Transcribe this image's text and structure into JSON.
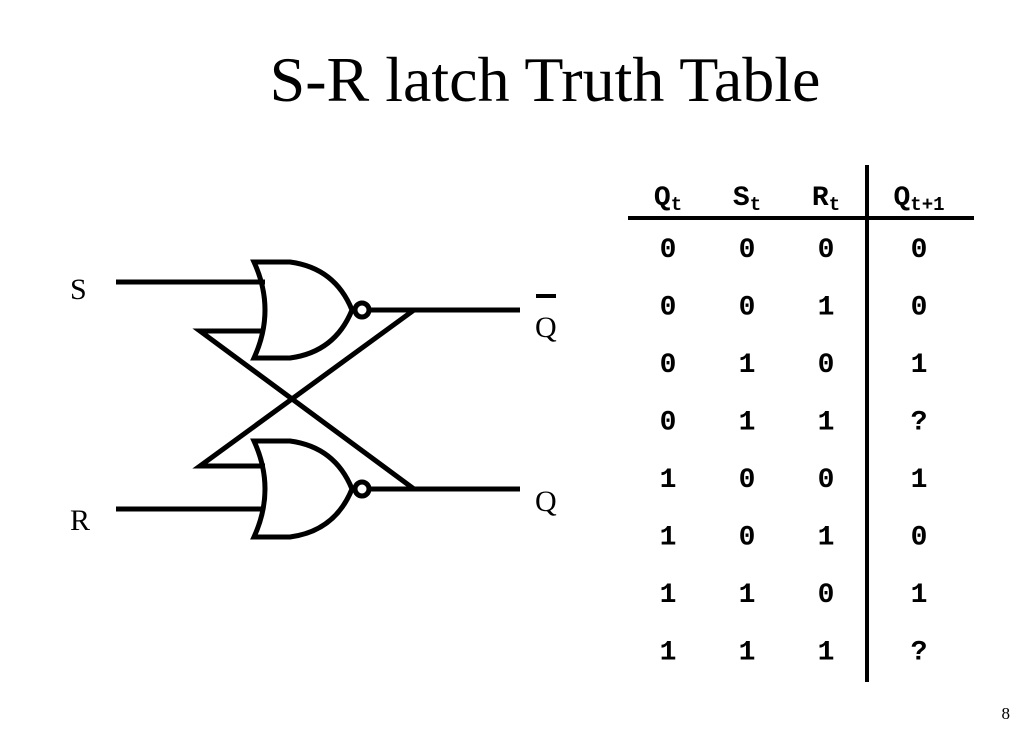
{
  "title": "S-R latch Truth Table",
  "circuit": {
    "input_s_label": "S",
    "input_r_label": "R",
    "output_qbar_label": "Q",
    "output_q_label": "Q",
    "gate_type": "NOR",
    "gate_count": 2
  },
  "truth_table": {
    "headers": [
      {
        "main": "Q",
        "sub": "t"
      },
      {
        "main": "S",
        "sub": "t"
      },
      {
        "main": "R",
        "sub": "t"
      },
      {
        "main": "Q",
        "sub": "t+1"
      }
    ],
    "rows": [
      [
        "0",
        "0",
        "0",
        "0"
      ],
      [
        "0",
        "0",
        "1",
        "0"
      ],
      [
        "0",
        "1",
        "0",
        "1"
      ],
      [
        "0",
        "1",
        "1",
        "?"
      ],
      [
        "1",
        "0",
        "0",
        "1"
      ],
      [
        "1",
        "0",
        "1",
        "0"
      ],
      [
        "1",
        "1",
        "0",
        "1"
      ],
      [
        "1",
        "1",
        "1",
        "?"
      ]
    ]
  },
  "page_number": "8"
}
